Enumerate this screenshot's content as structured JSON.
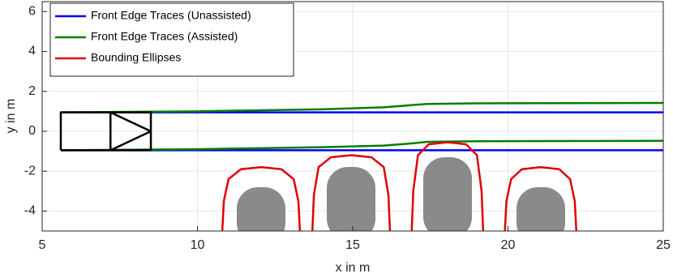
{
  "chart_data": {
    "type": "line",
    "xlabel": "x in m",
    "ylabel": "y in m",
    "xlim": [
      5,
      25
    ],
    "ylim": [
      -5,
      6.5
    ],
    "xticks": [
      5,
      10,
      15,
      20,
      25
    ],
    "yticks": [
      -4,
      -2,
      0,
      2,
      4,
      6
    ],
    "grid": true,
    "legend": "upper left",
    "series": [
      {
        "name": "Front Edge Traces (Unassisted)",
        "color": "#0000ff",
        "x": [
          5.6,
          25,
          null,
          5.6,
          25
        ],
        "y": [
          0.95,
          0.95,
          null,
          -0.95,
          -0.95
        ]
      },
      {
        "name": "Front Edge Traces (Assisted)",
        "color": "#008000",
        "x": [
          5.6,
          10,
          14,
          16,
          16.8,
          17.4,
          19,
          25,
          null,
          5.6,
          10,
          14,
          16,
          16.8,
          17.4,
          19,
          25
        ],
        "y": [
          0.95,
          1.0,
          1.1,
          1.2,
          1.3,
          1.37,
          1.4,
          1.42,
          null,
          -0.95,
          -0.9,
          -0.8,
          -0.72,
          -0.62,
          -0.53,
          -0.5,
          -0.48
        ]
      },
      {
        "name": "Bounding Ellipses",
        "color": "#e00000",
        "x": [
          10.8,
          10.85,
          11.0,
          11.4,
          12.05,
          12.7,
          13.1,
          13.25,
          13.3,
          null,
          13.7,
          13.75,
          13.9,
          14.3,
          14.95,
          15.6,
          16.0,
          16.15,
          16.2,
          null,
          16.9,
          16.95,
          17.1,
          17.45,
          18.05,
          18.65,
          19.0,
          19.15,
          19.2,
          null,
          19.9,
          19.95,
          20.1,
          20.45,
          21.05,
          21.65,
          22.0,
          22.15,
          22.2
        ],
        "y": [
          -5,
          -3.5,
          -2.4,
          -1.9,
          -1.8,
          -1.9,
          -2.4,
          -3.5,
          -5,
          null,
          -5,
          -3.2,
          -1.8,
          -1.3,
          -1.2,
          -1.3,
          -1.8,
          -3.2,
          -5,
          null,
          -5,
          -3.0,
          -1.2,
          -0.65,
          -0.55,
          -0.65,
          -1.2,
          -3.0,
          -5,
          null,
          -5,
          -3.5,
          -2.4,
          -1.9,
          -1.8,
          -1.9,
          -2.4,
          -3.5,
          -5
        ]
      },
      {
        "color": "#000000",
        "x": [
          5.6,
          8.5,
          8.5,
          5.6,
          5.6,
          null,
          7.2,
          7.2,
          null,
          7.2,
          8.5,
          7.2
        ],
        "y": [
          -0.95,
          -0.95,
          0.95,
          0.95,
          -0.95,
          null,
          -0.95,
          0.95,
          null,
          0.95,
          0,
          -0.95
        ]
      }
    ]
  }
}
